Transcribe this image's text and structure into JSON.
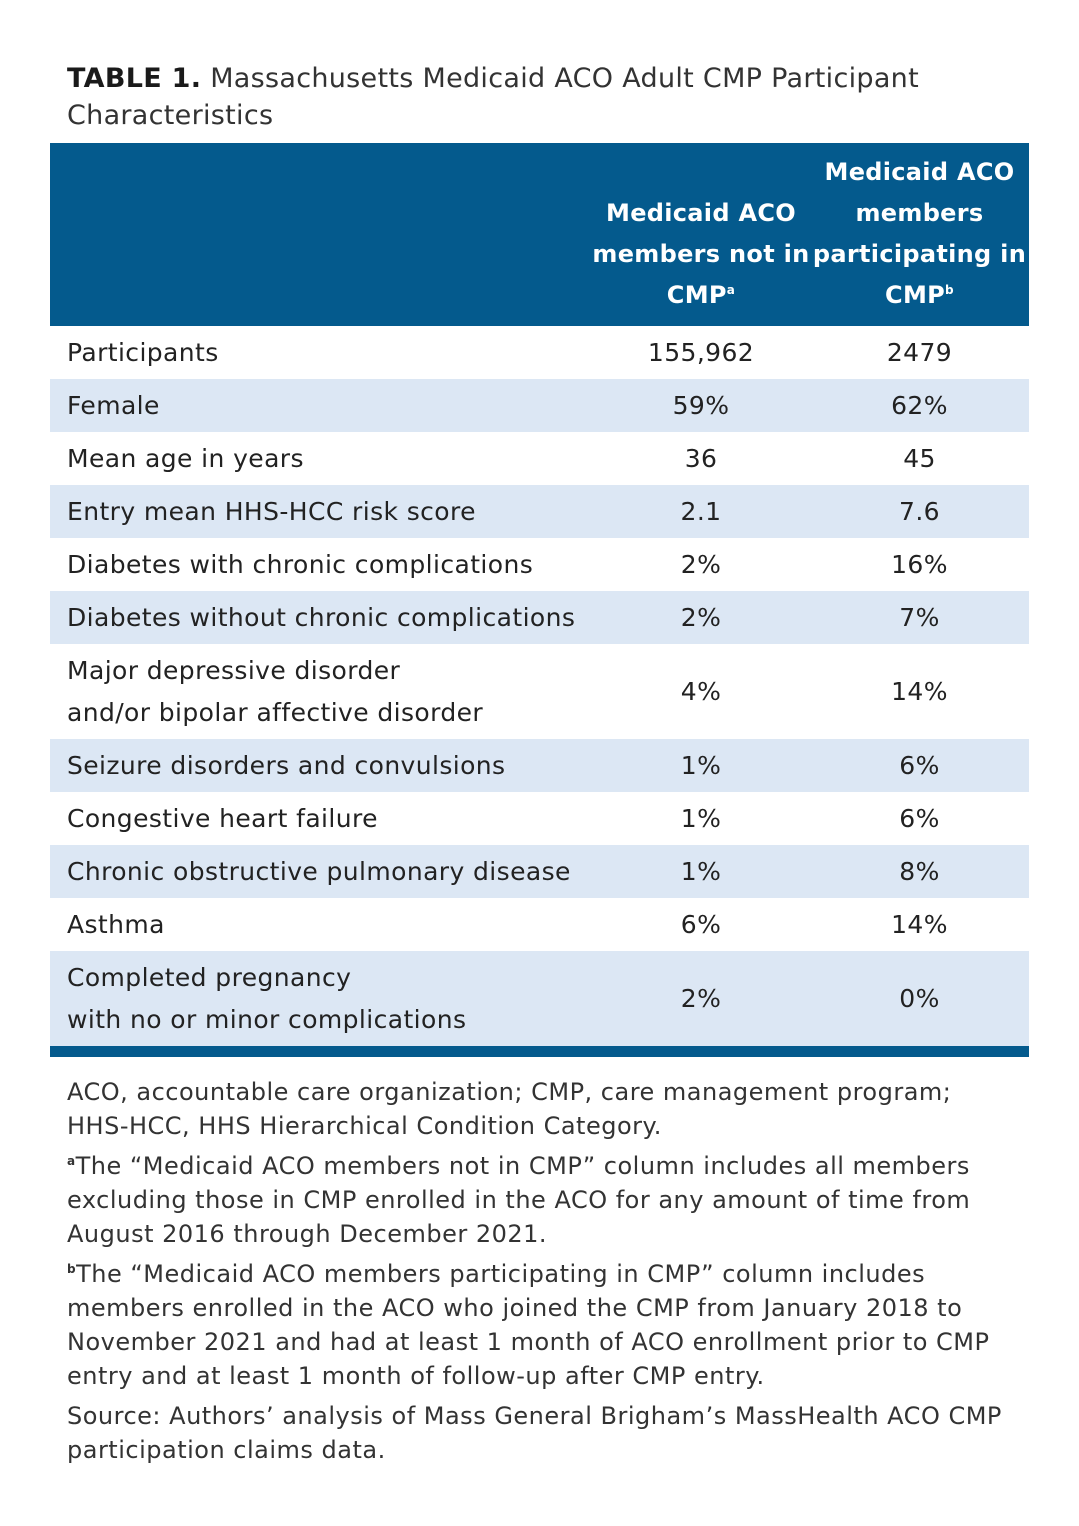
{
  "caption": {
    "label": "TABLE 1.",
    "title": "Massachusetts Medicaid ACO Adult CMP Participant Characteristics"
  },
  "table": {
    "headers": {
      "col1": "Medicaid ACO members not in CMP",
      "col1_note": "a",
      "col2": "Medicaid ACO members participating in CMP",
      "col2_note": "b"
    },
    "rows": [
      {
        "label": "Participants",
        "not_in_cmp": "155,962",
        "in_cmp": "2479"
      },
      {
        "label": "Female",
        "not_in_cmp": "59%",
        "in_cmp": "62%"
      },
      {
        "label": "Mean age in years",
        "not_in_cmp": "36",
        "in_cmp": "45"
      },
      {
        "label": "Entry mean HHS-HCC risk score",
        "not_in_cmp": "2.1",
        "in_cmp": "7.6"
      },
      {
        "label": "Diabetes with chronic complications",
        "not_in_cmp": "2%",
        "in_cmp": "16%"
      },
      {
        "label": "Diabetes without chronic complications",
        "not_in_cmp": "2%",
        "in_cmp": "7%"
      },
      {
        "label_line1": "Major depressive disorder",
        "label_line2": "and/or bipolar affective disorder",
        "not_in_cmp": "4%",
        "in_cmp": "14%"
      },
      {
        "label": "Seizure disorders and convulsions",
        "not_in_cmp": "1%",
        "in_cmp": "6%"
      },
      {
        "label": "Congestive heart failure",
        "not_in_cmp": "1%",
        "in_cmp": "6%"
      },
      {
        "label": "Chronic obstructive pulmonary disease",
        "not_in_cmp": "1%",
        "in_cmp": "8%"
      },
      {
        "label": "Asthma",
        "not_in_cmp": "6%",
        "in_cmp": "14%"
      },
      {
        "label_line1": "Completed pregnancy",
        "label_line2": "with no or minor complications",
        "not_in_cmp": "2%",
        "in_cmp": "0%"
      }
    ]
  },
  "notes": {
    "abbreviations": "ACO, accountable care organization; CMP, care management program; HHS-HCC, HHS Hierarchical Condition Category.",
    "a_marker": "a",
    "a_text": "The “Medicaid ACO members not in CMP” column includes all members excluding those in CMP enrolled in the ACO for any amount of time from August 2016 through December 2021.",
    "b_marker": "b",
    "b_text": "The “Medicaid ACO members participating in CMP” column includes members enrolled in the ACO who joined the CMP from January 2018 to November 2021 and had at least 1 month of ACO enrollment prior to CMP entry and at least 1 month of follow-up after CMP entry.",
    "source": "Source: Authors’ analysis of Mass General Brigham’s MassHealth ACO CMP participation claims data."
  },
  "colors": {
    "header_bg": "#045a8d",
    "shaded_row": "#dce7f4"
  }
}
